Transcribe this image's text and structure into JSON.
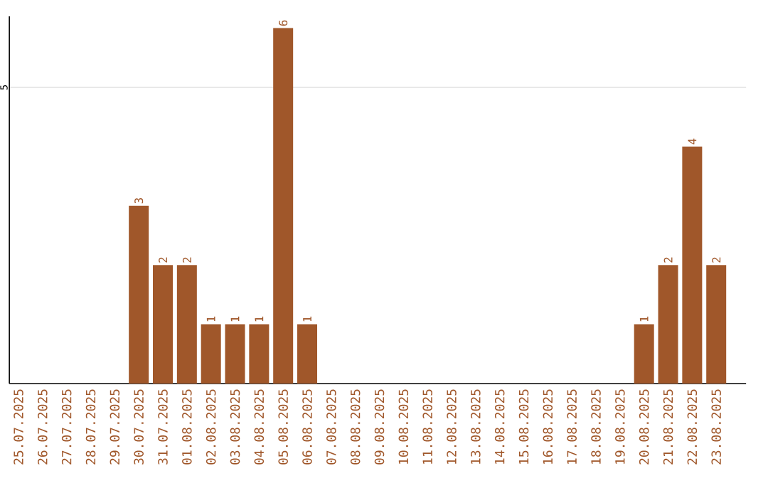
{
  "chart_data": {
    "type": "bar",
    "categories": [
      "25.07.2025",
      "26.07.2025",
      "27.07.2025",
      "28.07.2025",
      "29.07.2025",
      "30.07.2025",
      "31.07.2025",
      "01.08.2025",
      "02.08.2025",
      "03.08.2025",
      "04.08.2025",
      "05.08.2025",
      "06.08.2025",
      "07.08.2025",
      "08.08.2025",
      "09.08.2025",
      "10.08.2025",
      "11.08.2025",
      "12.08.2025",
      "13.08.2025",
      "14.08.2025",
      "15.08.2025",
      "16.08.2025",
      "17.08.2025",
      "18.08.2025",
      "19.08.2025",
      "20.08.2025",
      "21.08.2025",
      "22.08.2025",
      "23.08.2025"
    ],
    "values": [
      0,
      0,
      0,
      0,
      0,
      3,
      2,
      2,
      1,
      1,
      1,
      6,
      1,
      0,
      0,
      0,
      0,
      0,
      0,
      0,
      0,
      0,
      0,
      0,
      0,
      0,
      1,
      2,
      4,
      2
    ],
    "value_labels": [
      null,
      null,
      null,
      null,
      null,
      "3",
      "2",
      "2",
      "1",
      "1",
      "1",
      "6",
      "1",
      null,
      null,
      null,
      null,
      null,
      null,
      null,
      null,
      null,
      null,
      null,
      null,
      null,
      "1",
      "2",
      "4",
      "2"
    ],
    "color": "#a0572a",
    "ylim": [
      0,
      6.2
    ],
    "yticks": [
      5
    ],
    "grid": "y"
  }
}
